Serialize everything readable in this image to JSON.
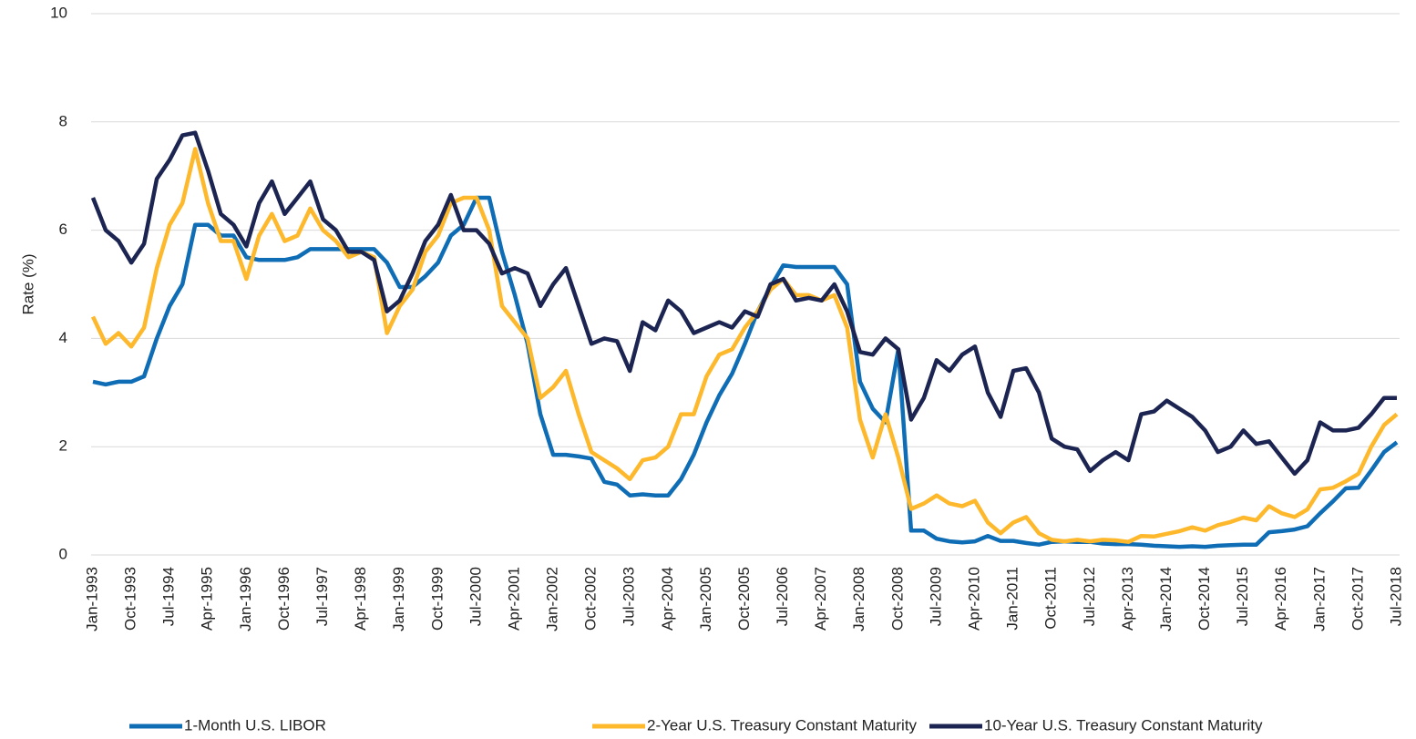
{
  "chart_data": {
    "type": "line",
    "ylabel": "Rate (%)",
    "categories": [
      "Jan-1993",
      null,
      null,
      "Oct-1993",
      null,
      null,
      "Jul-1994",
      null,
      null,
      "Apr-1995",
      null,
      null,
      "Jan-1996",
      null,
      null,
      "Oct-1996",
      null,
      null,
      "Jul-1997",
      null,
      null,
      "Apr-1998",
      null,
      null,
      "Jan-1999",
      null,
      null,
      "Oct-1999",
      null,
      null,
      "Jul-2000",
      null,
      null,
      "Apr-2001",
      null,
      null,
      "Jan-2002",
      null,
      null,
      "Oct-2002",
      null,
      null,
      "Jul-2003",
      null,
      null,
      "Apr-2004",
      null,
      null,
      "Jan-2005",
      null,
      null,
      "Oct-2005",
      null,
      null,
      "Jul-2006",
      null,
      null,
      "Apr-2007",
      null,
      null,
      "Jan-2008",
      null,
      null,
      "Oct-2008",
      null,
      null,
      "Jul-2009",
      null,
      null,
      "Apr-2010",
      null,
      null,
      "Jan-2011",
      null,
      null,
      "Oct-2011",
      null,
      null,
      "Jul-2012",
      null,
      null,
      "Apr-2013",
      null,
      null,
      "Jan-2014",
      null,
      null,
      "Oct-2014",
      null,
      null,
      "Jul-2015",
      null,
      null,
      "Apr-2016",
      null,
      null,
      "Jan-2017",
      null,
      null,
      "Oct-2017",
      null,
      null,
      "Jul-2018"
    ],
    "series": [
      {
        "name": "1-Month U.S. LIBOR",
        "color": "#0f6db5",
        "values": [
          3.2,
          3.15,
          3.2,
          3.2,
          3.3,
          4.0,
          4.6,
          5.0,
          6.1,
          6.1,
          5.9,
          5.9,
          5.5,
          5.45,
          5.45,
          5.45,
          5.5,
          5.65,
          5.65,
          5.65,
          5.65,
          5.65,
          5.65,
          5.4,
          4.95,
          4.95,
          5.15,
          5.4,
          5.9,
          6.1,
          6.6,
          6.6,
          5.6,
          4.8,
          3.9,
          2.6,
          1.85,
          1.85,
          1.82,
          1.78,
          1.35,
          1.3,
          1.1,
          1.12,
          1.1,
          1.1,
          1.4,
          1.85,
          2.45,
          2.95,
          3.35,
          3.9,
          4.5,
          4.95,
          5.35,
          5.32,
          5.32,
          5.32,
          5.32,
          5.0,
          3.2,
          2.7,
          2.45,
          3.8,
          0.45,
          0.45,
          0.3,
          0.25,
          0.23,
          0.25,
          0.35,
          0.26,
          0.26,
          0.22,
          0.19,
          0.24,
          0.25,
          0.24,
          0.24,
          0.21,
          0.2,
          0.2,
          0.19,
          0.17,
          0.16,
          0.15,
          0.16,
          0.15,
          0.17,
          0.18,
          0.19,
          0.19,
          0.42,
          0.44,
          0.47,
          0.53,
          0.77,
          0.99,
          1.23,
          1.24,
          1.56,
          1.9,
          2.08
        ]
      },
      {
        "name": "2-Year U.S. Treasury Constant Maturity",
        "color": "#fdb82c",
        "values": [
          4.4,
          3.9,
          4.1,
          3.85,
          4.2,
          5.3,
          6.1,
          6.5,
          7.5,
          6.5,
          5.8,
          5.8,
          5.1,
          5.9,
          6.3,
          5.8,
          5.9,
          6.4,
          6.0,
          5.8,
          5.5,
          5.6,
          5.5,
          4.1,
          4.6,
          4.9,
          5.6,
          5.9,
          6.5,
          6.6,
          6.6,
          6.0,
          4.6,
          4.3,
          4.0,
          2.9,
          3.1,
          3.4,
          2.6,
          1.9,
          1.75,
          1.6,
          1.4,
          1.75,
          1.8,
          2.0,
          2.6,
          2.6,
          3.3,
          3.7,
          3.8,
          4.2,
          4.5,
          4.9,
          5.1,
          4.8,
          4.8,
          4.7,
          4.8,
          4.2,
          2.5,
          1.8,
          2.6,
          1.8,
          0.85,
          0.95,
          1.1,
          0.95,
          0.9,
          1.0,
          0.6,
          0.4,
          0.6,
          0.7,
          0.4,
          0.28,
          0.25,
          0.28,
          0.25,
          0.28,
          0.27,
          0.24,
          0.35,
          0.34,
          0.39,
          0.44,
          0.51,
          0.45,
          0.55,
          0.61,
          0.69,
          0.64,
          0.9,
          0.77,
          0.7,
          0.84,
          1.21,
          1.24,
          1.36,
          1.5,
          2.0,
          2.4,
          2.6
        ]
      },
      {
        "name": "10-Year U.S. Treasury Constant Maturity",
        "color": "#1c2452",
        "values": [
          6.6,
          6.0,
          5.8,
          5.4,
          5.75,
          6.95,
          7.3,
          7.75,
          7.8,
          7.1,
          6.3,
          6.1,
          5.7,
          6.5,
          6.9,
          6.3,
          6.6,
          6.9,
          6.2,
          6.0,
          5.6,
          5.6,
          5.45,
          4.5,
          4.7,
          5.2,
          5.8,
          6.1,
          6.65,
          6.0,
          6.0,
          5.75,
          5.2,
          5.3,
          5.2,
          4.6,
          5.0,
          5.3,
          4.6,
          3.9,
          4.0,
          3.95,
          3.4,
          4.3,
          4.15,
          4.7,
          4.5,
          4.1,
          4.2,
          4.3,
          4.2,
          4.5,
          4.4,
          5.0,
          5.1,
          4.7,
          4.75,
          4.7,
          5.0,
          4.5,
          3.75,
          3.7,
          4.0,
          3.8,
          2.5,
          2.9,
          3.6,
          3.4,
          3.7,
          3.85,
          3.0,
          2.55,
          3.4,
          3.45,
          3.0,
          2.15,
          2.0,
          1.95,
          1.55,
          1.75,
          1.9,
          1.75,
          2.6,
          2.65,
          2.85,
          2.7,
          2.55,
          2.3,
          1.9,
          2.0,
          2.3,
          2.05,
          2.1,
          1.8,
          1.5,
          1.75,
          2.45,
          2.3,
          2.3,
          2.35,
          2.6,
          2.9,
          2.9
        ]
      }
    ],
    "ylim": [
      0,
      10
    ],
    "yticks": [
      0,
      2,
      4,
      6,
      8,
      10
    ],
    "grid": true,
    "legend": "bottom"
  }
}
